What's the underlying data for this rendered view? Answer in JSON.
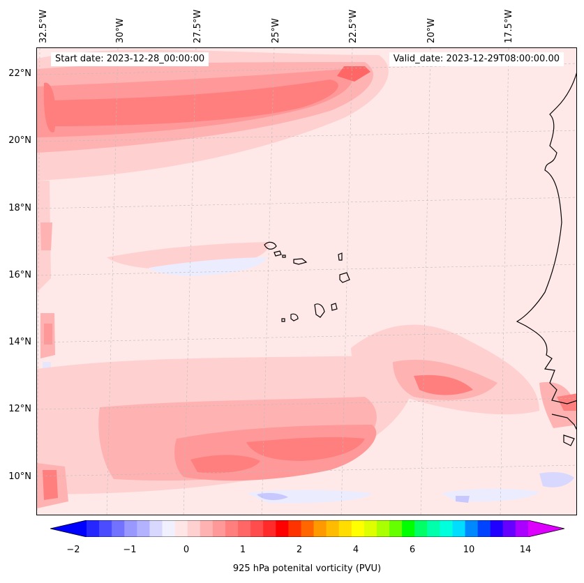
{
  "header": {
    "start_date": "Start date: 2023-12-28_00:00:00",
    "valid_date": "Valid_date: 2023-12-29T08:00:00.00"
  },
  "lon_labels": [
    "32.5°W",
    "30°W",
    "27.5°W",
    "25°W",
    "22.5°W",
    "20°W",
    "17.5°W"
  ],
  "lat_labels": [
    "22°N",
    "20°N",
    "18°N",
    "16°N",
    "14°N",
    "12°N",
    "10°N"
  ],
  "colorbar": {
    "title": "925 hPa potenital vorticity (PVU)",
    "tick_labels": [
      "−2",
      "−1",
      "0",
      "1",
      "2",
      "4",
      "6",
      "10",
      "14"
    ],
    "colors": [
      "#0000ff",
      "#2626ff",
      "#4c4cff",
      "#7272ff",
      "#9898ff",
      "#b2b2ff",
      "#d8d8ff",
      "#f0f0ff",
      "#ffe6e6",
      "#ffd0d0",
      "#ffb2b2",
      "#ff9999",
      "#ff7f7f",
      "#ff6666",
      "#ff4c4c",
      "#ff2a2a",
      "#ff0000",
      "#ff3300",
      "#ff6600",
      "#ff9900",
      "#ffbb00",
      "#ffdd00",
      "#ffff00",
      "#ddff00",
      "#aaff00",
      "#66ff00",
      "#00ff00",
      "#00ff66",
      "#00ffaa",
      "#00ffdd",
      "#00ddff",
      "#0088ff",
      "#0044ff",
      "#2200ff",
      "#6600ff",
      "#aa00ff",
      "#dd00ff"
    ]
  }
}
